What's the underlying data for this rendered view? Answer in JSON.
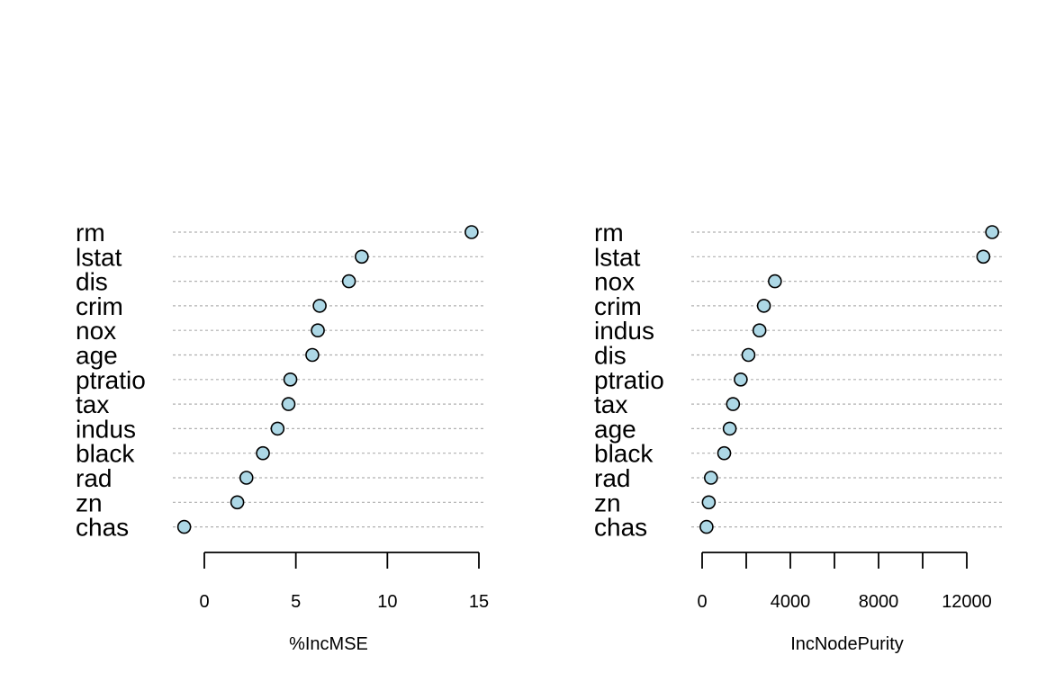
{
  "chart_data": [
    {
      "type": "scatter",
      "subtype": "dotchart",
      "xlabel": "%IncMSE",
      "categories": [
        "rm",
        "lstat",
        "dis",
        "crim",
        "nox",
        "age",
        "ptratio",
        "tax",
        "indus",
        "black",
        "rad",
        "zn",
        "chas"
      ],
      "values": [
        14.6,
        8.6,
        7.9,
        6.3,
        6.2,
        5.9,
        4.7,
        4.6,
        4.0,
        3.2,
        2.3,
        1.8,
        -1.1
      ],
      "xticks": [
        0,
        5,
        10,
        15
      ],
      "xlim": [
        -1.7,
        15.2
      ],
      "point_color": "#add8e6",
      "grid": "dotted",
      "grid_color": "#b0b0b0"
    },
    {
      "type": "scatter",
      "subtype": "dotchart",
      "xlabel": "IncNodePurity",
      "categories": [
        "rm",
        "lstat",
        "nox",
        "crim",
        "indus",
        "dis",
        "ptratio",
        "tax",
        "age",
        "black",
        "rad",
        "zn",
        "chas"
      ],
      "values": [
        13150,
        12750,
        3300,
        2800,
        2600,
        2100,
        1750,
        1400,
        1250,
        1000,
        400,
        300,
        200
      ],
      "xticks": [
        0,
        2000,
        4000,
        6000,
        8000,
        10000,
        12000
      ],
      "xtick_labels": [
        "0",
        "",
        "4000",
        "",
        "8000",
        "",
        "12000"
      ],
      "xlim": [
        -500,
        13500
      ],
      "point_color": "#add8e6",
      "grid": "dotted",
      "grid_color": "#b0b0b0"
    }
  ]
}
